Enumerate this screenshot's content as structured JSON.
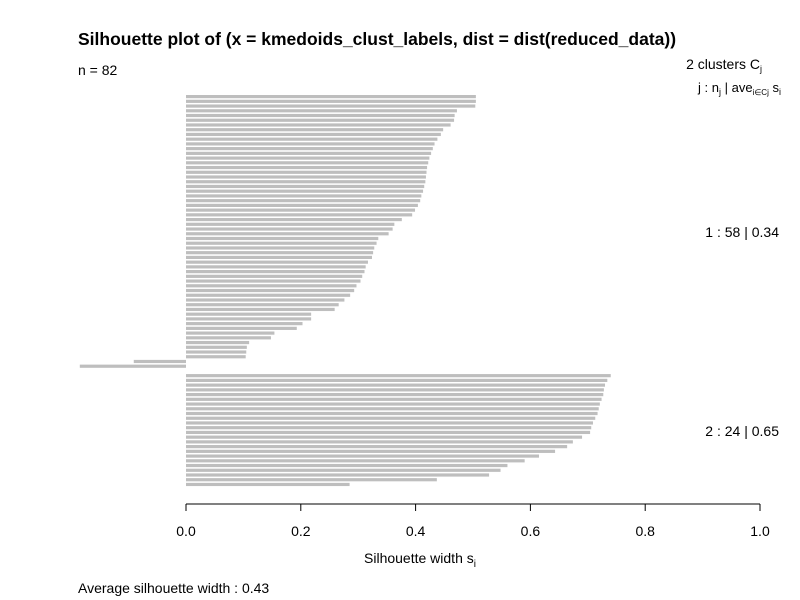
{
  "page": {
    "title": "Silhouette plot of (x = kmedoids_clust_labels, dist = dist(reduced_data))",
    "n_label": "n = 82",
    "avg_label": "Average silhouette width :",
    "avg_value": "0.43",
    "legend_header_1": "2  clusters  C",
    "legend_header_1_sub": "j",
    "legend_header_2_a": "j :  n",
    "legend_header_2_b": "j",
    "legend_header_2_c": " | ave",
    "legend_header_2_d": "i∈Cj",
    "legend_header_2_e": "  s",
    "legend_header_2_f": "i"
  },
  "chart_data": {
    "type": "bar",
    "orientation": "horizontal",
    "n": 82,
    "xlabel": "Silhouette width s",
    "xlabel_sub": "i",
    "xlim": [
      0,
      1
    ],
    "xticks": [
      "0.0",
      "0.2",
      "0.4",
      "0.6",
      "0.8",
      "1.0"
    ],
    "bar_color": "#bebebe",
    "clusters": [
      {
        "id": 1,
        "size": 58,
        "avg": 0.34,
        "label": "1 :   58  |  0.34",
        "values": [
          0.505,
          0.505,
          0.504,
          0.472,
          0.468,
          0.467,
          0.461,
          0.448,
          0.444,
          0.438,
          0.433,
          0.43,
          0.427,
          0.424,
          0.422,
          0.42,
          0.419,
          0.418,
          0.417,
          0.415,
          0.413,
          0.41,
          0.408,
          0.404,
          0.399,
          0.394,
          0.376,
          0.363,
          0.36,
          0.353,
          0.335,
          0.332,
          0.328,
          0.326,
          0.324,
          0.317,
          0.313,
          0.311,
          0.307,
          0.304,
          0.297,
          0.293,
          0.286,
          0.276,
          0.266,
          0.259,
          0.218,
          0.218,
          0.203,
          0.193,
          0.154,
          0.148,
          0.11,
          0.106,
          0.105,
          0.104,
          -0.091,
          -0.185
        ]
      },
      {
        "id": 2,
        "size": 24,
        "avg": 0.65,
        "label": "2 :   24  |  0.65",
        "values": [
          0.74,
          0.734,
          0.73,
          0.728,
          0.727,
          0.724,
          0.721,
          0.719,
          0.717,
          0.713,
          0.709,
          0.706,
          0.704,
          0.69,
          0.674,
          0.664,
          0.643,
          0.615,
          0.59,
          0.56,
          0.548,
          0.528,
          0.437,
          0.285
        ]
      }
    ]
  }
}
